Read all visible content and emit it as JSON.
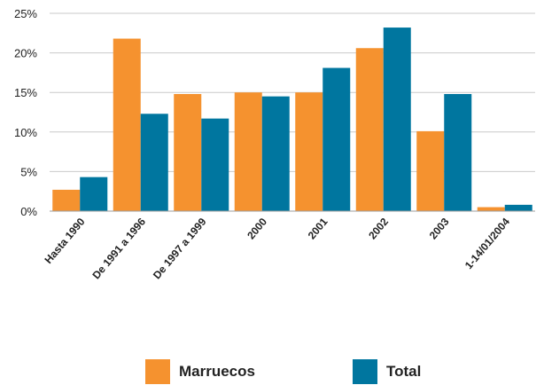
{
  "chart_data": {
    "type": "bar",
    "title": "",
    "xlabel": "",
    "ylabel": "",
    "categories": [
      "Hasta 1990",
      "De 1991 a 1996",
      "De 1997 a 1999",
      "2000",
      "2001",
      "2002",
      "2003",
      "1-14/01/2004"
    ],
    "series": [
      {
        "name": "Marruecos",
        "color": "#F5922F",
        "values": [
          2.7,
          21.8,
          14.8,
          15.0,
          15.0,
          20.6,
          10.1,
          0.5
        ]
      },
      {
        "name": "Total",
        "color": "#00769F",
        "values": [
          4.3,
          12.3,
          11.7,
          14.5,
          18.1,
          23.2,
          14.8,
          0.8
        ]
      }
    ],
    "ylim": [
      0,
      25
    ],
    "y_ticks": [
      0,
      5,
      10,
      15,
      20,
      25
    ],
    "y_tick_labels": [
      "0%",
      "5%",
      "10%",
      "15%",
      "20%",
      "25%"
    ],
    "grid": true,
    "legend_position": "bottom"
  }
}
